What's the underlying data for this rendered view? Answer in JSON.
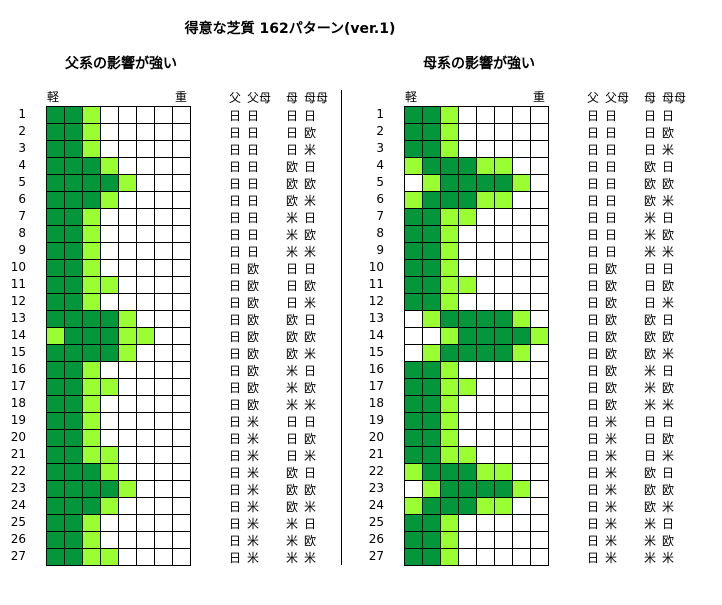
{
  "title": "得意な芝質 162パターン(ver.1)",
  "colors": {
    "strong": "#03963a",
    "weak": "#99ff33",
    "none": "#ffffff"
  },
  "legend": {
    "light": "軽",
    "heavy": "重"
  },
  "column_headers": [
    "父",
    "父母",
    "母",
    "母母"
  ],
  "panels": [
    {
      "subtitle": "父系の影響が強い",
      "rows": [
        "DDL.....",
        "DDL.....",
        "DDL.....",
        "DDDL....",
        "DDDDL...",
        "DDDL....",
        "DDL.....",
        "DDL.....",
        "DDL.....",
        "DDL.....",
        "DDLL....",
        "DDL.....",
        "DDDDL...",
        "LDDDLL..",
        "DDDDL...",
        "DDL.....",
        "DDLL....",
        "DDL.....",
        "DDL.....",
        "DDL.....",
        "DDLL....",
        "DDDL....",
        "DDDDL...",
        "DDDL....",
        "DDL.....",
        "DDL.....",
        "DDLL...."
      ]
    },
    {
      "subtitle": "母系の影響が強い",
      "rows": [
        "DDL.....",
        "DDL.....",
        "DDL.....",
        "LDDDLL..",
        ".LDDDDL.",
        "LDDDLL..",
        "DDLL....",
        "DDL.....",
        "DDL.....",
        "DDL.....",
        "DDLL....",
        "DDL.....",
        ".LDDDDL.",
        "..LDDDDL",
        ".LDDDDL.",
        "DDL.....",
        "DDLL....",
        "DDL.....",
        "DDL.....",
        "DDL.....",
        "DDLL....",
        "LDDDLL..",
        ".LDDDDL.",
        "LDDDLL..",
        "DDL.....",
        "DDL.....",
        "DDL....."
      ]
    }
  ],
  "row_labels": [
    [
      "日",
      "日",
      "日",
      "日"
    ],
    [
      "日",
      "日",
      "日",
      "欧"
    ],
    [
      "日",
      "日",
      "日",
      "米"
    ],
    [
      "日",
      "日",
      "欧",
      "日"
    ],
    [
      "日",
      "日",
      "欧",
      "欧"
    ],
    [
      "日",
      "日",
      "欧",
      "米"
    ],
    [
      "日",
      "日",
      "米",
      "日"
    ],
    [
      "日",
      "日",
      "米",
      "欧"
    ],
    [
      "日",
      "日",
      "米",
      "米"
    ],
    [
      "日",
      "欧",
      "日",
      "日"
    ],
    [
      "日",
      "欧",
      "日",
      "欧"
    ],
    [
      "日",
      "欧",
      "日",
      "米"
    ],
    [
      "日",
      "欧",
      "欧",
      "日"
    ],
    [
      "日",
      "欧",
      "欧",
      "欧"
    ],
    [
      "日",
      "欧",
      "欧",
      "米"
    ],
    [
      "日",
      "欧",
      "米",
      "日"
    ],
    [
      "日",
      "欧",
      "米",
      "欧"
    ],
    [
      "日",
      "欧",
      "米",
      "米"
    ],
    [
      "日",
      "米",
      "日",
      "日"
    ],
    [
      "日",
      "米",
      "日",
      "欧"
    ],
    [
      "日",
      "米",
      "日",
      "米"
    ],
    [
      "日",
      "米",
      "欧",
      "日"
    ],
    [
      "日",
      "米",
      "欧",
      "欧"
    ],
    [
      "日",
      "米",
      "欧",
      "米"
    ],
    [
      "日",
      "米",
      "米",
      "日"
    ],
    [
      "日",
      "米",
      "米",
      "欧"
    ],
    [
      "日",
      "米",
      "米",
      "米"
    ]
  ]
}
